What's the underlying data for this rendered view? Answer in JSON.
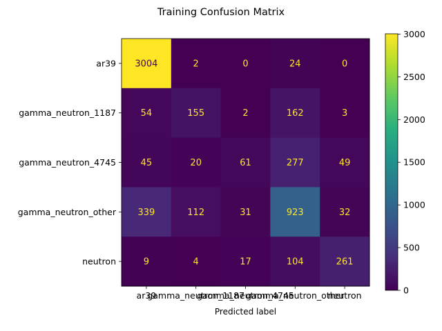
{
  "chart_data": {
    "type": "heatmap",
    "title": "Training Confusion Matrix",
    "xlabel": "Predicted label",
    "ylabel": "",
    "x_categories": [
      "ar39",
      "gamma_neutron_1187",
      "gamma_neutron_4745",
      "gamma_neutron_other",
      "neutron"
    ],
    "y_categories": [
      "ar39",
      "gamma_neutron_1187",
      "gamma_neutron_4745",
      "gamma_neutron_other",
      "neutron"
    ],
    "values": [
      [
        3004,
        2,
        0,
        24,
        0
      ],
      [
        54,
        155,
        2,
        162,
        3
      ],
      [
        45,
        20,
        61,
        277,
        49
      ],
      [
        339,
        112,
        31,
        923,
        32
      ],
      [
        9,
        4,
        17,
        104,
        261
      ]
    ],
    "colormap": "viridis",
    "vmin": 0,
    "vmax": 3004,
    "colorbar_ticks": [
      0,
      500,
      1000,
      1500,
      2000,
      2500,
      3000
    ],
    "cell_text_colors": {
      "on_dark": "#fde725",
      "on_light": "#440154"
    }
  }
}
